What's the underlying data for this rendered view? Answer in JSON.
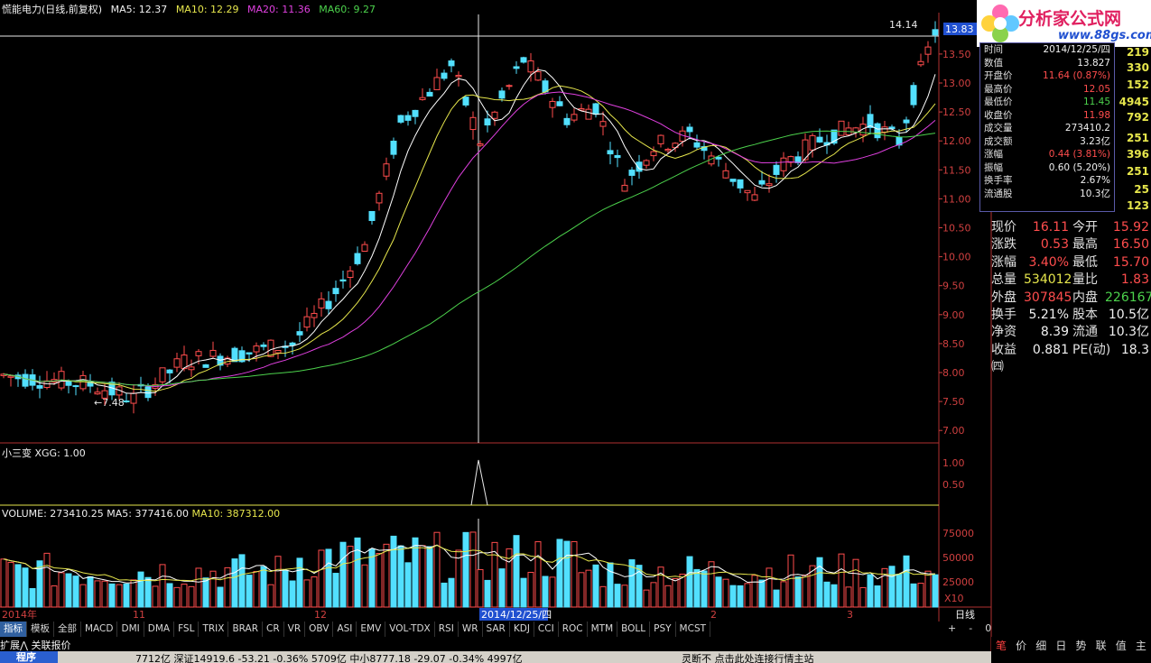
{
  "header": {
    "stock_name": "慌能电力(日线,前复权)",
    "ma5": "MA5: 12.37",
    "ma10": "MA10: 12.29",
    "ma20": "MA20: 11.36",
    "ma60": "MA60: 9.27"
  },
  "colors": {
    "up": "#ff4d4d",
    "down": "#52e0ff",
    "ma5": "#ffffff",
    "ma10": "#e6e64c",
    "ma20": "#e040e0",
    "ma60": "#4cd24c"
  },
  "price_axis": [
    "13.50",
    "13.00",
    "12.50",
    "12.00",
    "11.50",
    "11.00",
    "10.50",
    "10.00",
    "9.50",
    "9.00",
    "8.50",
    "8.00",
    "7.50",
    "7.00"
  ],
  "price_high_label": "14.14",
  "price_low_label": "7.48",
  "crosshair_price": "13.83",
  "indicator": {
    "title": "小三变 XGG: 1.00",
    "axis": [
      "1.00",
      "0.50"
    ]
  },
  "volume": {
    "title": "VOLUME: 273410.25",
    "ma5": "MA5: 377416.00",
    "ma10": "MA10: 387312.00",
    "axis": [
      "75000",
      "50000",
      "25000"
    ],
    "unit": "X10"
  },
  "date_axis": [
    "2014年",
    "11",
    "12",
    "2",
    "3"
  ],
  "crosshair_date": "2014/12/25/四",
  "period_label": "日线",
  "info_box": {
    "title_time": "时间",
    "rows": [
      {
        "k": "时间",
        "v": "2014/12/25/四",
        "c": "wht"
      },
      {
        "k": "数值",
        "v": "13.827",
        "c": "wht"
      },
      {
        "k": "开盘价",
        "v": "11.64 (0.87%)",
        "c": "red"
      },
      {
        "k": "最高价",
        "v": "12.05",
        "c": "red"
      },
      {
        "k": "最低价",
        "v": "11.45",
        "c": "grn"
      },
      {
        "k": "收盘价",
        "v": "11.98",
        "c": "red"
      },
      {
        "k": "成交量",
        "v": "273410.2",
        "c": "wht"
      },
      {
        "k": "成交额",
        "v": "3.23亿",
        "c": "wht"
      },
      {
        "k": "涨幅",
        "v": "0.44 (3.81%)",
        "c": "red"
      },
      {
        "k": "振幅",
        "v": "0.60 (5.20%)",
        "c": "wht"
      },
      {
        "k": "换手率",
        "v": "2.67%",
        "c": "wht"
      },
      {
        "k": "流通股",
        "v": "10.3亿",
        "c": "wht"
      }
    ]
  },
  "right_edge_numbers": [
    "219",
    "330",
    "152",
    "4945",
    "792",
    "251",
    "396",
    "251",
    "25",
    "123"
  ],
  "quote": [
    {
      "a": "现价",
      "b": "16.11",
      "bc": "red",
      "c": "今开",
      "d": "15.92",
      "dc": "red"
    },
    {
      "a": "涨跌",
      "b": "0.53",
      "bc": "red",
      "c": "最高",
      "d": "16.50",
      "dc": "red"
    },
    {
      "a": "涨幅",
      "b": "3.40%",
      "bc": "red",
      "c": "最低",
      "d": "15.70",
      "dc": "red"
    },
    {
      "a": "总量",
      "b": "534012",
      "bc": "ylw",
      "c": "量比",
      "d": "1.83",
      "dc": "red"
    },
    {
      "a": "外盘",
      "b": "307845",
      "bc": "red",
      "c": "内盘",
      "d": "226167",
      "dc": "grn"
    },
    {
      "a": "换手",
      "b": "5.21%",
      "bc": "wht",
      "c": "股本",
      "d": "10.5亿",
      "dc": "wht"
    },
    {
      "a": "净资",
      "b": "8.39",
      "bc": "wht",
      "c": "流通",
      "d": "10.3亿",
      "dc": "wht"
    },
    {
      "a": "收益㈣",
      "b": "0.881",
      "bc": "wht",
      "c": "PE(动)",
      "d": "18.3",
      "dc": "wht"
    }
  ],
  "tabs": [
    "指标",
    "模板",
    "全部",
    "MACD",
    "DMI",
    "DMA",
    "FSL",
    "TRIX",
    "BRAR",
    "CR",
    "VR",
    "OBV",
    "ASI",
    "EMV",
    "VOL-TDX",
    "RSI",
    "WR",
    "SAR",
    "KDJ",
    "CCI",
    "ROC",
    "MTM",
    "BOLL",
    "PSY",
    "MCST"
  ],
  "tab_controls": [
    "+",
    "-",
    "0"
  ],
  "right_tabs": [
    "笔",
    "价",
    "细",
    "日",
    "势",
    "联",
    "值",
    "主"
  ],
  "bottom_left": "扩展⋀ 关联报价",
  "taskbar_start": "程序",
  "taskbar_text": "7712亿 深证14919.6 -53.21 -0.36% 5709亿 中小8777.18 -29.07 -0.34% 4997亿",
  "taskbar_news": "灵断不 点击此处连接行情主站",
  "logo_text": "分析家公式网",
  "logo_url": "www.88gs.com"
}
